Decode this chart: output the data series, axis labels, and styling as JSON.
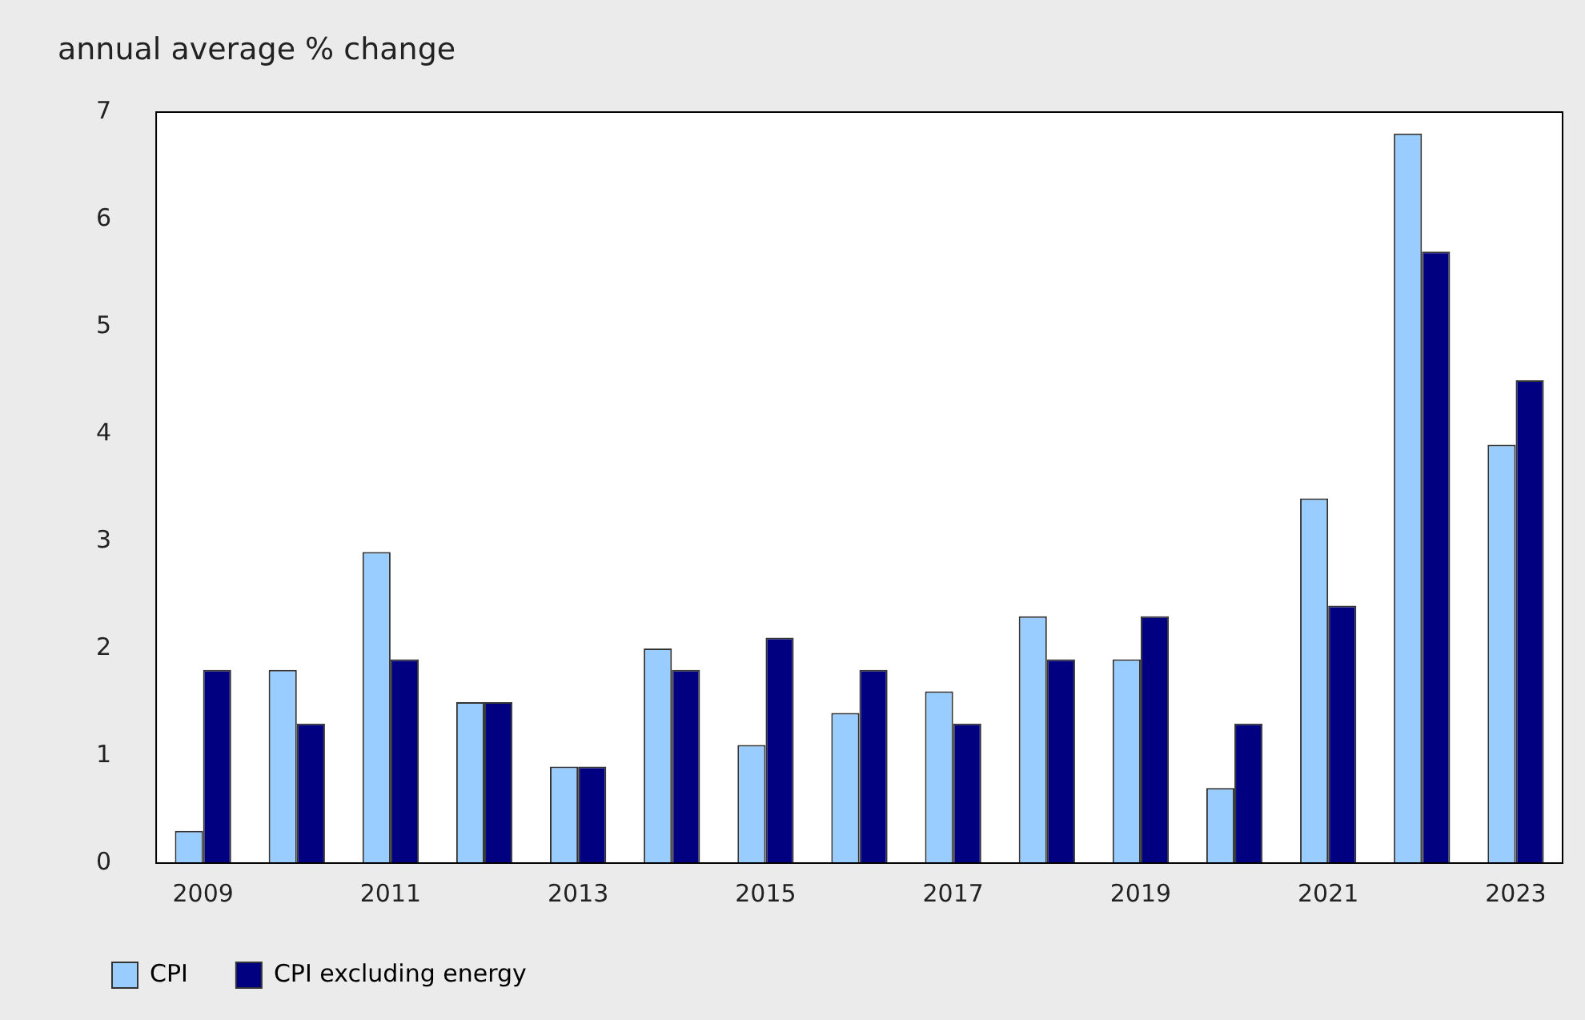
{
  "chart_data": {
    "type": "bar",
    "ylabel": "annual average % change",
    "categories": [
      "2009",
      null,
      "2011",
      null,
      "2013",
      null,
      "2015",
      null,
      "2017",
      null,
      "2019",
      null,
      "2021",
      null,
      "2023"
    ],
    "series": [
      {
        "name": "CPI",
        "color": "#99ccff",
        "values": [
          0.3,
          1.8,
          2.9,
          1.5,
          0.9,
          2.0,
          1.1,
          1.4,
          1.6,
          2.3,
          1.9,
          0.7,
          3.4,
          6.8,
          3.9
        ]
      },
      {
        "name": "CPI excluding energy",
        "color": "#000080",
        "values": [
          1.8,
          1.3,
          1.9,
          1.5,
          0.9,
          1.8,
          2.1,
          1.8,
          1.3,
          1.9,
          2.3,
          1.3,
          2.4,
          5.7,
          4.5
        ]
      }
    ],
    "ylim": [
      0,
      7
    ],
    "yticks": [
      0,
      1,
      2,
      3,
      4,
      5,
      6,
      7
    ],
    "grid": false,
    "legend": "bottom"
  }
}
